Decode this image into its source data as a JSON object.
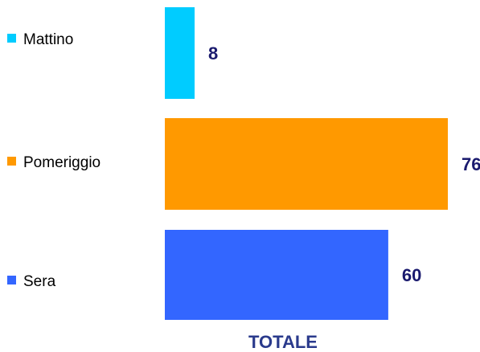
{
  "chart_data": {
    "type": "bar",
    "orientation": "horizontal",
    "xlabel": "TOTALE",
    "legend_position": "left",
    "xlim": [
      0,
      76
    ],
    "grid": false,
    "series": [
      {
        "name": "Mattino",
        "value": 8,
        "color": "#00ccff"
      },
      {
        "name": "Pomeriggio",
        "value": 76,
        "color": "#ff9900"
      },
      {
        "name": "Sera",
        "value": 60,
        "color": "#3366ff"
      }
    ]
  }
}
